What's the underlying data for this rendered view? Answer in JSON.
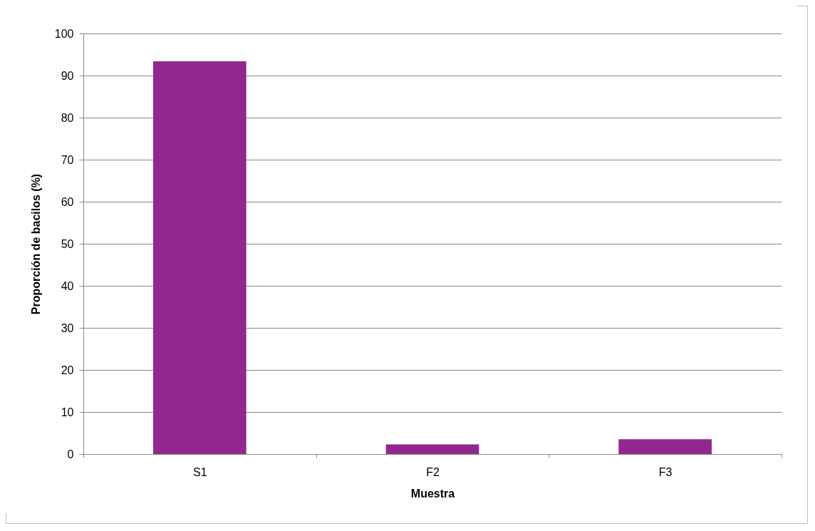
{
  "chart_data": {
    "type": "bar",
    "xlabel": "Muestra",
    "ylabel": "Proporción de bacilos (%)",
    "categories": [
      "S1",
      "F2",
      "F3"
    ],
    "values": [
      93.4,
      2.3,
      3.5
    ],
    "color": "#92278f",
    "ylim": [
      0,
      100
    ],
    "yticks": [
      0,
      10,
      20,
      30,
      40,
      50,
      60,
      70,
      80,
      90,
      100
    ],
    "grid": "y"
  }
}
